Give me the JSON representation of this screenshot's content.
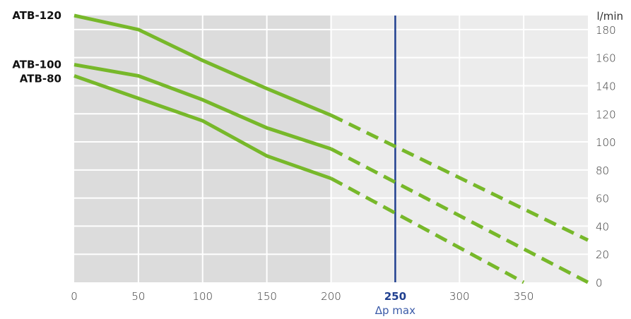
{
  "chart_data": {
    "type": "line",
    "ylabel": "l/min",
    "xlim": [
      0,
      400
    ],
    "ylim": [
      0,
      190
    ],
    "x_ticks": [
      0,
      50,
      100,
      150,
      200,
      250,
      300,
      350
    ],
    "y_ticks": [
      0,
      20,
      40,
      60,
      80,
      100,
      120,
      140,
      160,
      180
    ],
    "y_axis_side": "right",
    "grid": true,
    "shaded_region_x": [
      0,
      200
    ],
    "solid_until_x": 200,
    "marker": {
      "x": 250,
      "label": "250",
      "sublabel": "Δp max"
    },
    "series": [
      {
        "name": "ATB-120",
        "x": [
          0,
          50,
          100,
          150,
          200,
          400
        ],
        "values": [
          190,
          180,
          158,
          138,
          119,
          30
        ]
      },
      {
        "name": "ATB-100",
        "x": [
          0,
          50,
          100,
          150,
          200,
          400
        ],
        "values": [
          155,
          147,
          130,
          110,
          95,
          0
        ]
      },
      {
        "name": "ATB-80",
        "x": [
          0,
          50,
          100,
          150,
          200,
          350
        ],
        "values": [
          147,
          131,
          115,
          90,
          74,
          0
        ]
      }
    ],
    "colors": {
      "line": "#77b82a",
      "marker": "#1f3f8f",
      "shade_dark": "#dcdcdc",
      "shade_light": "#ececec",
      "grid": "#ffffff"
    }
  }
}
